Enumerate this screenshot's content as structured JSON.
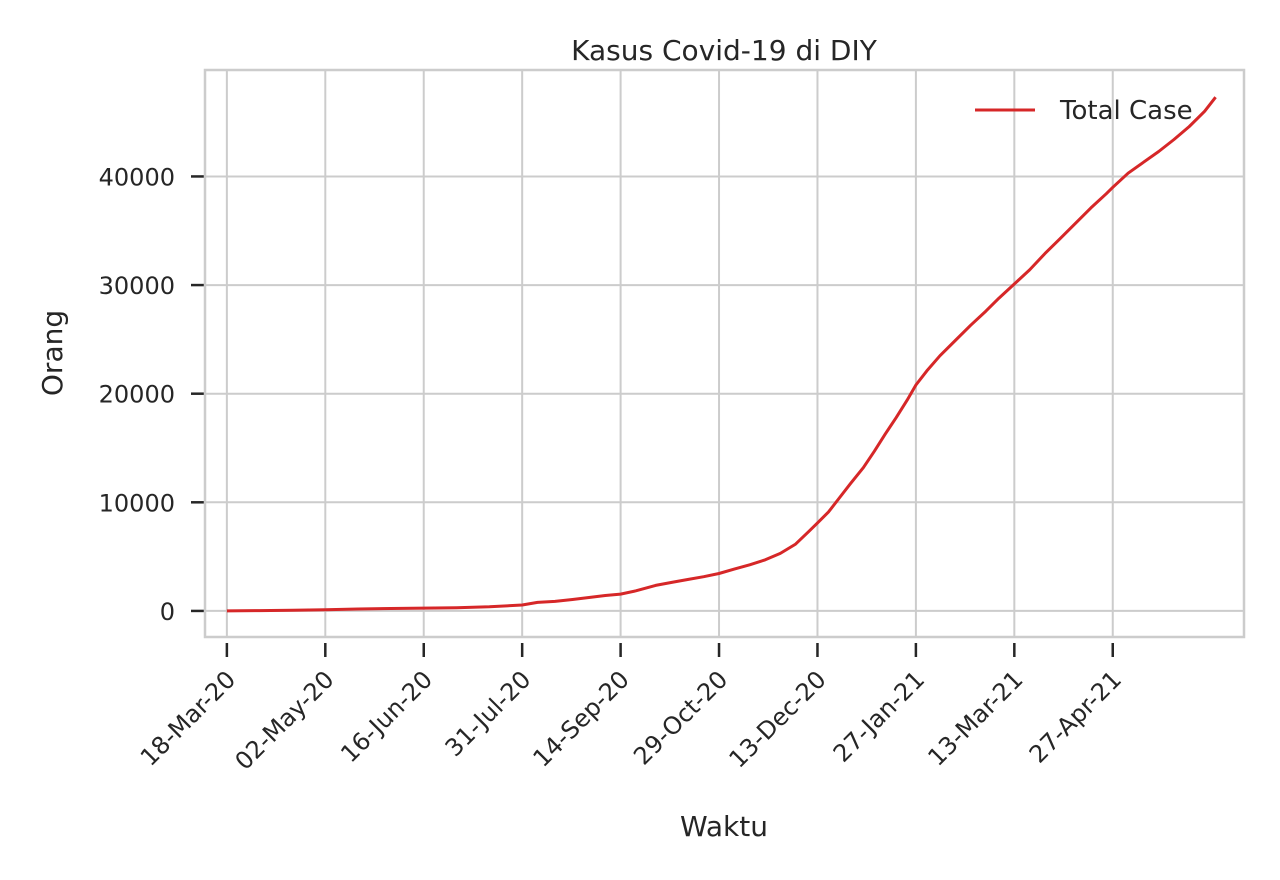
{
  "chart_data": {
    "type": "line",
    "title": "Kasus Covid-19 di DIY",
    "xlabel": "Waktu",
    "ylabel": "Orang",
    "x_ticks": [
      "18-Mar-20",
      "02-May-20",
      "16-Jun-20",
      "31-Jul-20",
      "14-Sep-20",
      "29-Oct-20",
      "13-Dec-20",
      "27-Jan-21",
      "13-Mar-21",
      "27-Apr-21"
    ],
    "x_tick_dates": [
      "2020-03-18",
      "2020-05-02",
      "2020-06-16",
      "2020-07-31",
      "2020-09-14",
      "2020-10-29",
      "2020-12-13",
      "2021-01-27",
      "2021-03-13",
      "2021-04-27"
    ],
    "xlim": [
      "2020-03-08",
      "2021-06-26"
    ],
    "y_ticks": [
      0,
      10000,
      20000,
      30000,
      40000
    ],
    "ylim": [
      -2400,
      49800
    ],
    "grid": true,
    "legend_position": "top-right",
    "series": [
      {
        "name": "Total Case",
        "color": "#d62728",
        "points": [
          [
            "2020-03-18",
            0
          ],
          [
            "2020-04-02",
            30
          ],
          [
            "2020-04-17",
            60
          ],
          [
            "2020-05-02",
            110
          ],
          [
            "2020-05-17",
            180
          ],
          [
            "2020-06-01",
            220
          ],
          [
            "2020-06-16",
            260
          ],
          [
            "2020-07-01",
            300
          ],
          [
            "2020-07-16",
            380
          ],
          [
            "2020-07-31",
            550
          ],
          [
            "2020-08-07",
            790
          ],
          [
            "2020-08-15",
            880
          ],
          [
            "2020-08-23",
            1050
          ],
          [
            "2020-08-31",
            1250
          ],
          [
            "2020-09-07",
            1420
          ],
          [
            "2020-09-14",
            1550
          ],
          [
            "2020-09-21",
            1850
          ],
          [
            "2020-09-30",
            2350
          ],
          [
            "2020-10-08",
            2650
          ],
          [
            "2020-10-15",
            2900
          ],
          [
            "2020-10-22",
            3150
          ],
          [
            "2020-10-29",
            3450
          ],
          [
            "2020-11-05",
            3850
          ],
          [
            "2020-11-12",
            4250
          ],
          [
            "2020-11-19",
            4700
          ],
          [
            "2020-11-26",
            5300
          ],
          [
            "2020-12-03",
            6150
          ],
          [
            "2020-12-09",
            7300
          ],
          [
            "2020-12-13",
            8100
          ],
          [
            "2020-12-18",
            9100
          ],
          [
            "2020-12-23",
            10400
          ],
          [
            "2020-12-28",
            11700
          ],
          [
            "2021-01-03",
            13200
          ],
          [
            "2021-01-08",
            14700
          ],
          [
            "2021-01-13",
            16300
          ],
          [
            "2021-01-18",
            17800
          ],
          [
            "2021-01-23",
            19400
          ],
          [
            "2021-01-27",
            20800
          ],
          [
            "2021-02-01",
            22100
          ],
          [
            "2021-02-07",
            23500
          ],
          [
            "2021-02-14",
            24900
          ],
          [
            "2021-02-21",
            26300
          ],
          [
            "2021-02-28",
            27600
          ],
          [
            "2021-03-06",
            28800
          ],
          [
            "2021-03-13",
            30100
          ],
          [
            "2021-03-20",
            31400
          ],
          [
            "2021-03-27",
            32900
          ],
          [
            "2021-04-03",
            34300
          ],
          [
            "2021-04-10",
            35700
          ],
          [
            "2021-04-17",
            37100
          ],
          [
            "2021-04-24",
            38400
          ],
          [
            "2021-04-27",
            39000
          ],
          [
            "2021-05-04",
            40300
          ],
          [
            "2021-05-11",
            41300
          ],
          [
            "2021-05-18",
            42300
          ],
          [
            "2021-05-25",
            43400
          ],
          [
            "2021-06-01",
            44600
          ],
          [
            "2021-06-08",
            46000
          ],
          [
            "2021-06-13",
            47300
          ]
        ]
      }
    ]
  }
}
